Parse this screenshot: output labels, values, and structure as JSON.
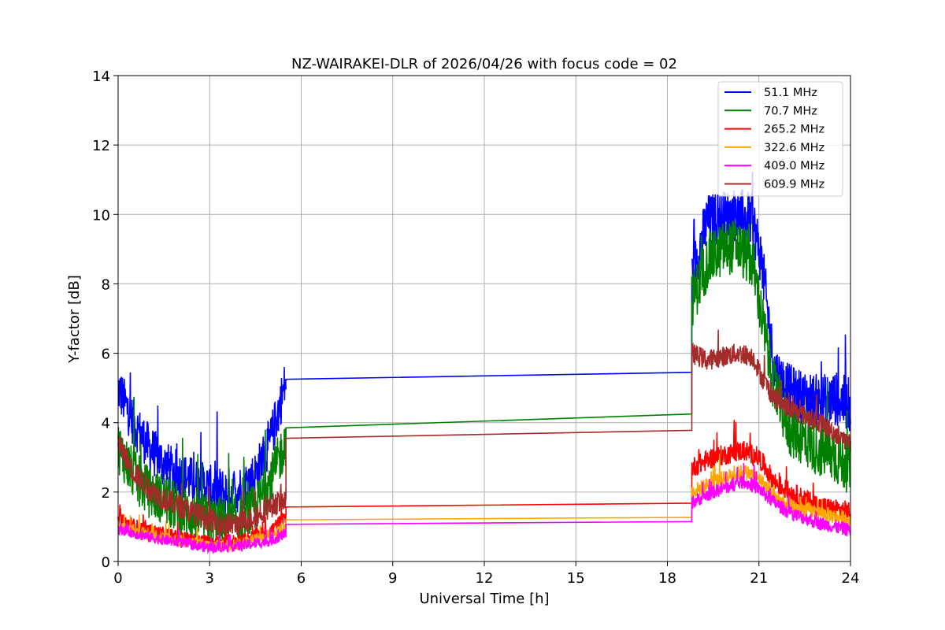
{
  "chart_data": {
    "type": "line",
    "title": "NZ-WAIRAKEI-DLR of 2026/04/26 with focus code = 02",
    "xlabel": "Universal Time [h]",
    "ylabel": "Y-factor [dB]",
    "xlim": [
      0,
      24
    ],
    "ylim": [
      0,
      14
    ],
    "xticks": [
      "0",
      "3",
      "6",
      "9",
      "12",
      "15",
      "18",
      "21",
      "24"
    ],
    "yticks": [
      "0",
      "2",
      "4",
      "6",
      "8",
      "10",
      "12",
      "14"
    ],
    "grid": true,
    "legend_position": "top-right",
    "data_gap": [
      5.5,
      18.8
    ],
    "series": [
      {
        "name": " 51.1 MHz",
        "color": "#0000ff",
        "segment1": [
          [
            0,
            5.0
          ],
          [
            0.5,
            4.0
          ],
          [
            1,
            3.3
          ],
          [
            1.5,
            2.8
          ],
          [
            2,
            2.5
          ],
          [
            2.5,
            2.3
          ],
          [
            3,
            2.1
          ],
          [
            3.5,
            2.0
          ],
          [
            4,
            2.1
          ],
          [
            4.5,
            2.5
          ],
          [
            5,
            3.5
          ],
          [
            5.5,
            5.2
          ]
        ],
        "gap": [
          [
            5.5,
            5.25
          ],
          [
            18.8,
            5.45
          ]
        ],
        "segment2": [
          [
            18.8,
            8.2
          ],
          [
            19.3,
            9.8
          ],
          [
            19.8,
            9.9
          ],
          [
            20.3,
            10.0
          ],
          [
            20.8,
            9.8
          ],
          [
            21.1,
            8.6
          ],
          [
            21.5,
            5.5
          ],
          [
            22,
            4.9
          ],
          [
            22.5,
            4.7
          ],
          [
            23,
            4.6
          ],
          [
            23.5,
            4.7
          ],
          [
            24,
            4.5
          ]
        ],
        "noise1": 0.7,
        "noise2": 0.8
      },
      {
        "name": " 70.7 MHz",
        "color": "#008000",
        "segment1": [
          [
            0,
            3.3
          ],
          [
            0.5,
            2.5
          ],
          [
            1,
            2.0
          ],
          [
            1.5,
            1.8
          ],
          [
            2,
            1.5
          ],
          [
            2.5,
            1.3
          ],
          [
            3,
            1.2
          ],
          [
            3.5,
            1.1
          ],
          [
            4,
            1.2
          ],
          [
            4.5,
            1.5
          ],
          [
            5,
            2.3
          ],
          [
            5.5,
            3.5
          ]
        ],
        "gap": [
          [
            5.5,
            3.85
          ],
          [
            18.8,
            4.25
          ]
        ],
        "segment2": [
          [
            18.8,
            7.5
          ],
          [
            19.3,
            8.6
          ],
          [
            19.8,
            9.0
          ],
          [
            20.3,
            9.1
          ],
          [
            20.8,
            8.6
          ],
          [
            21.1,
            7.0
          ],
          [
            21.5,
            5.0
          ],
          [
            22,
            3.8
          ],
          [
            22.5,
            3.5
          ],
          [
            23,
            3.2
          ],
          [
            23.5,
            3.0
          ],
          [
            24,
            2.7
          ]
        ],
        "noise1": 0.75,
        "noise2": 0.8
      },
      {
        "name": "265.2 MHz",
        "color": "#ff0000",
        "segment1": [
          [
            0,
            1.2
          ],
          [
            1,
            0.9
          ],
          [
            2,
            0.7
          ],
          [
            3,
            0.55
          ],
          [
            4,
            0.6
          ],
          [
            5,
            0.9
          ],
          [
            5.5,
            1.3
          ]
        ],
        "gap": [
          [
            5.5,
            1.57
          ],
          [
            18.8,
            1.68
          ]
        ],
        "segment2": [
          [
            18.8,
            2.7
          ],
          [
            19.5,
            3.0
          ],
          [
            20.5,
            3.2
          ],
          [
            21,
            3.0
          ],
          [
            21.5,
            2.3
          ],
          [
            22,
            2.0
          ],
          [
            22.5,
            1.8
          ],
          [
            23,
            1.6
          ],
          [
            23.5,
            1.5
          ],
          [
            24,
            1.45
          ]
        ],
        "noise1": 0.2,
        "noise2": 0.3
      },
      {
        "name": "322.6 MHz",
        "color": "#ffa500",
        "segment1": [
          [
            0,
            1.0
          ],
          [
            1,
            0.75
          ],
          [
            2,
            0.6
          ],
          [
            3,
            0.45
          ],
          [
            4,
            0.5
          ],
          [
            5,
            0.75
          ],
          [
            5.5,
            1.0
          ]
        ],
        "gap": [
          [
            5.5,
            1.2
          ],
          [
            18.8,
            1.27
          ]
        ],
        "segment2": [
          [
            18.8,
            2.0
          ],
          [
            19.5,
            2.3
          ],
          [
            20.5,
            2.6
          ],
          [
            21,
            2.4
          ],
          [
            21.5,
            1.9
          ],
          [
            22,
            1.6
          ],
          [
            22.5,
            1.5
          ],
          [
            23,
            1.4
          ],
          [
            23.5,
            1.3
          ],
          [
            24,
            1.2
          ]
        ],
        "noise1": 0.18,
        "noise2": 0.22
      },
      {
        "name": "409.0 MHz",
        "color": "#ff00ff",
        "segment1": [
          [
            0,
            0.95
          ],
          [
            1,
            0.7
          ],
          [
            2,
            0.55
          ],
          [
            3,
            0.4
          ],
          [
            4,
            0.45
          ],
          [
            5,
            0.6
          ],
          [
            5.5,
            0.8
          ]
        ],
        "gap": [
          [
            5.5,
            1.07
          ],
          [
            18.8,
            1.15
          ]
        ],
        "segment2": [
          [
            18.8,
            1.7
          ],
          [
            19.5,
            2.0
          ],
          [
            20.5,
            2.3
          ],
          [
            21,
            2.1
          ],
          [
            21.5,
            1.7
          ],
          [
            22,
            1.4
          ],
          [
            22.5,
            1.25
          ],
          [
            23,
            1.1
          ],
          [
            23.5,
            1.0
          ],
          [
            24,
            0.9
          ]
        ],
        "noise1": 0.16,
        "noise2": 0.2
      },
      {
        "name": "609.9 MHz",
        "color": "#a52a2a",
        "segment1": [
          [
            0,
            3.4
          ],
          [
            0.5,
            2.6
          ],
          [
            1,
            2.1
          ],
          [
            1.5,
            1.8
          ],
          [
            2,
            1.6
          ],
          [
            2.5,
            1.4
          ],
          [
            3,
            1.2
          ],
          [
            3.5,
            1.05
          ],
          [
            4,
            1.1
          ],
          [
            4.5,
            1.3
          ],
          [
            5,
            1.6
          ],
          [
            5.5,
            1.8
          ]
        ],
        "gap": [
          [
            5.5,
            3.55
          ],
          [
            18.8,
            3.78
          ]
        ],
        "segment2": [
          [
            18.8,
            6.0
          ],
          [
            19.3,
            5.8
          ],
          [
            19.8,
            5.9
          ],
          [
            20.3,
            6.0
          ],
          [
            20.8,
            5.9
          ],
          [
            21.1,
            5.3
          ],
          [
            21.5,
            4.7
          ],
          [
            22,
            4.4
          ],
          [
            22.5,
            4.2
          ],
          [
            23,
            4.0
          ],
          [
            23.5,
            3.7
          ],
          [
            24,
            3.4
          ]
        ],
        "noise1": 0.35,
        "noise2": 0.3
      }
    ]
  }
}
